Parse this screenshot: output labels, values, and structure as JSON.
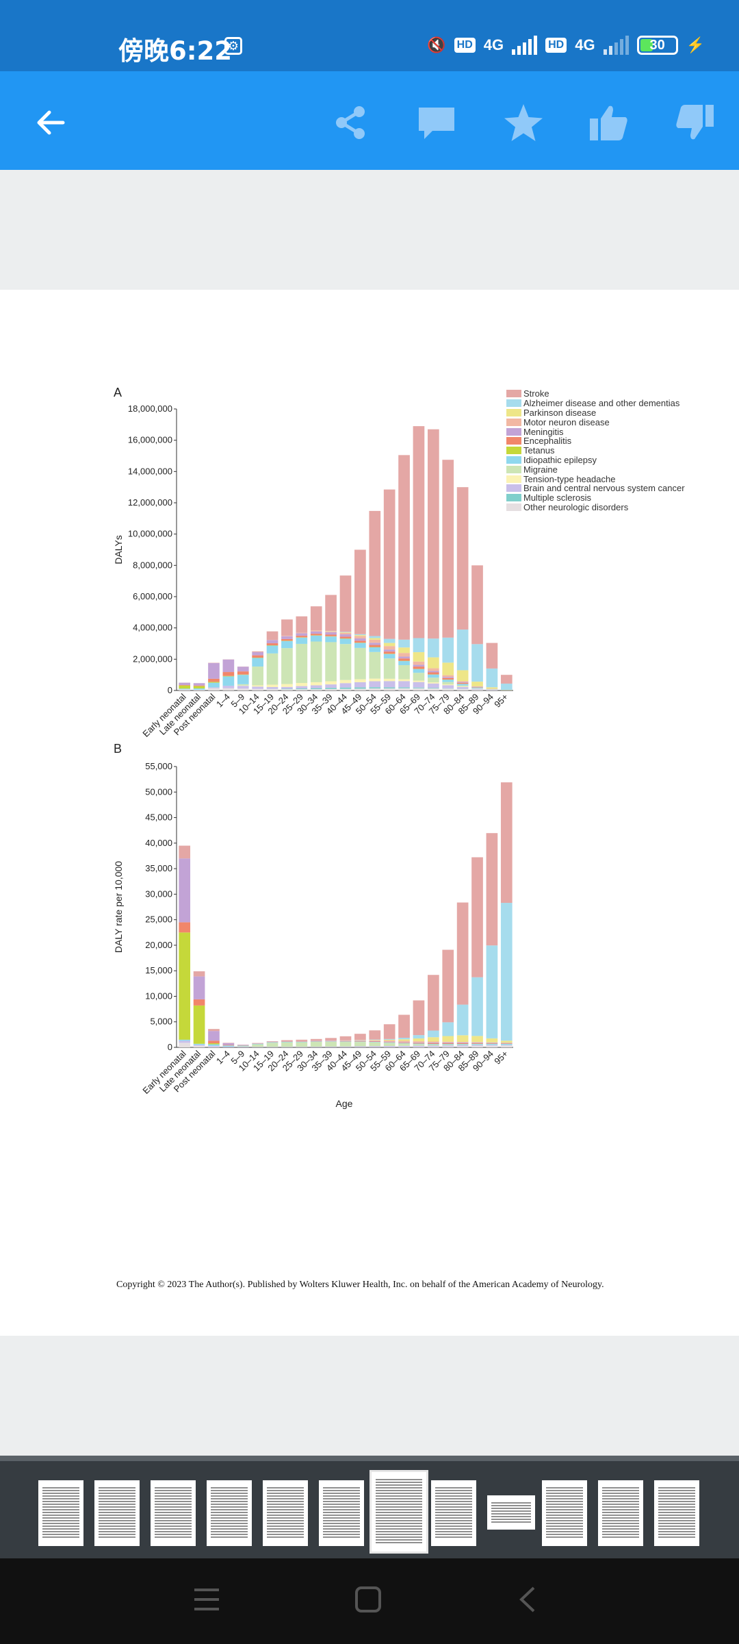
{
  "status_bar": {
    "time": "傍晚6:22",
    "net1": "4G",
    "net2": "4G",
    "hd": "HD",
    "battery": "30"
  },
  "toolbar": {
    "back_icon": "arrow-left-icon",
    "icons": [
      "share-icon",
      "comment-icon",
      "star-icon",
      "thumbs-up-icon",
      "thumbs-down-icon"
    ]
  },
  "figure": {
    "label_a": "A",
    "label_b": "B"
  },
  "legend": [
    {
      "name": "Stroke",
      "color": "#e4a7a5"
    },
    {
      "name": "Alzheimer disease and other dementias",
      "color": "#a6dced"
    },
    {
      "name": "Parkinson disease",
      "color": "#eee688"
    },
    {
      "name": "Motor neuron disease",
      "color": "#f2b8a3"
    },
    {
      "name": "Meningitis",
      "color": "#c2a3d6"
    },
    {
      "name": "Encephalitis",
      "color": "#f1866a"
    },
    {
      "name": "Tetanus",
      "color": "#c5d83a"
    },
    {
      "name": "Idiopathic epilepsy",
      "color": "#8fd8ee"
    },
    {
      "name": "Migraine",
      "color": "#cde5b5"
    },
    {
      "name": "Tension-type headache",
      "color": "#fbf3b5"
    },
    {
      "name": "Brain and central nervous system cancer",
      "color": "#c9bfea"
    },
    {
      "name": "Multiple sclerosis",
      "color": "#80cfcc"
    },
    {
      "name": "Other neurologic disorders",
      "color": "#e5dfe1"
    }
  ],
  "chart_data": [
    {
      "type": "bar",
      "stacked": true,
      "title": "",
      "ylabel": "DALYs",
      "xlabel": "",
      "ylim": [
        0,
        18000000
      ],
      "yticks": [
        "0",
        "2,000,000",
        "4,000,000",
        "6,000,000",
        "8,000,000",
        "10,000,000",
        "12,000,000",
        "14,000,000",
        "16,000,000",
        "18,000,000"
      ],
      "categories": [
        "Early neonatal",
        "Late neonatal",
        "Post neonatal",
        "1–4",
        "5–9",
        "10–14",
        "15–19",
        "20–24",
        "25–29",
        "30–34",
        "35–39",
        "40–44",
        "45–49",
        "50–54",
        "55–59",
        "60–64",
        "65–69",
        "70–74",
        "75–79",
        "80–84",
        "85–89",
        "90–94",
        "95+"
      ],
      "series": [
        {
          "name": "Other neurologic disorders",
          "values": [
            60000,
            40000,
            150000,
            150000,
            120000,
            100000,
            90000,
            80000,
            80000,
            80000,
            90000,
            100000,
            110000,
            130000,
            130000,
            140000,
            140000,
            130000,
            120000,
            100000,
            60000,
            30000,
            10000
          ]
        },
        {
          "name": "Multiple sclerosis",
          "values": [
            0,
            0,
            0,
            0,
            0,
            0,
            10000,
            30000,
            50000,
            70000,
            80000,
            90000,
            90000,
            80000,
            70000,
            60000,
            50000,
            40000,
            20000,
            10000,
            5000,
            0,
            0
          ]
        },
        {
          "name": "Brain and central nervous system cancer",
          "values": [
            10000,
            10000,
            50000,
            150000,
            180000,
            150000,
            120000,
            120000,
            150000,
            180000,
            220000,
            280000,
            330000,
            380000,
            400000,
            400000,
            350000,
            280000,
            200000,
            120000,
            50000,
            20000,
            5000
          ]
        },
        {
          "name": "Tension-type headache",
          "values": [
            0,
            0,
            0,
            0,
            20000,
            80000,
            150000,
            180000,
            200000,
            200000,
            200000,
            200000,
            190000,
            170000,
            150000,
            120000,
            90000,
            70000,
            50000,
            30000,
            10000,
            5000,
            0
          ]
        },
        {
          "name": "Migraine",
          "values": [
            0,
            0,
            0,
            0,
            80000,
            1200000,
            2000000,
            2300000,
            2500000,
            2600000,
            2500000,
            2300000,
            2000000,
            1700000,
            1300000,
            900000,
            500000,
            300000,
            150000,
            60000,
            20000,
            5000,
            0
          ]
        },
        {
          "name": "Idiopathic epilepsy",
          "values": [
            50000,
            80000,
            300000,
            600000,
            600000,
            550000,
            500000,
            450000,
            400000,
            380000,
            360000,
            340000,
            320000,
            300000,
            280000,
            260000,
            240000,
            200000,
            150000,
            100000,
            50000,
            20000,
            5000
          ]
        },
        {
          "name": "Tetanus",
          "values": [
            200000,
            150000,
            50000,
            30000,
            20000,
            20000,
            20000,
            20000,
            20000,
            20000,
            20000,
            20000,
            20000,
            20000,
            20000,
            20000,
            10000,
            10000,
            10000,
            5000,
            0,
            0,
            0
          ]
        },
        {
          "name": "Encephalitis",
          "values": [
            30000,
            40000,
            200000,
            250000,
            200000,
            150000,
            130000,
            110000,
            100000,
            100000,
            100000,
            110000,
            120000,
            130000,
            140000,
            150000,
            150000,
            130000,
            100000,
            70000,
            30000,
            10000,
            0
          ]
        },
        {
          "name": "Meningitis",
          "values": [
            150000,
            150000,
            1000000,
            800000,
            300000,
            200000,
            200000,
            180000,
            160000,
            150000,
            150000,
            150000,
            150000,
            140000,
            130000,
            120000,
            110000,
            90000,
            70000,
            50000,
            20000,
            10000,
            0
          ]
        },
        {
          "name": "Motor neuron disease",
          "values": [
            0,
            0,
            0,
            0,
            0,
            0,
            10000,
            20000,
            30000,
            40000,
            60000,
            100000,
            150000,
            200000,
            220000,
            230000,
            210000,
            170000,
            110000,
            50000,
            20000,
            5000,
            0
          ]
        },
        {
          "name": "Parkinson disease",
          "values": [
            0,
            0,
            0,
            0,
            0,
            0,
            0,
            0,
            0,
            10000,
            20000,
            30000,
            60000,
            100000,
            200000,
            350000,
            600000,
            700000,
            800000,
            700000,
            300000,
            100000,
            20000
          ]
        },
        {
          "name": "Alzheimer disease and other dementias",
          "values": [
            0,
            0,
            0,
            0,
            0,
            0,
            0,
            0,
            0,
            0,
            10000,
            30000,
            60000,
            130000,
            260000,
            500000,
            900000,
            1200000,
            1600000,
            2600000,
            2400000,
            1200000,
            400000
          ]
        },
        {
          "name": "Stroke",
          "values": [
            0,
            0,
            20000,
            10000,
            10000,
            50000,
            550000,
            1050000,
            1050000,
            1550000,
            2300000,
            3600000,
            5400000,
            8000000,
            9550000,
            11800000,
            13550000,
            13380000,
            11370000,
            9105000,
            5035000,
            1635000,
            560000
          ]
        }
      ]
    },
    {
      "type": "bar",
      "stacked": true,
      "title": "",
      "ylabel": "DALY rate per 10,000",
      "xlabel": "Age",
      "ylim": [
        0,
        55000
      ],
      "yticks": [
        "0",
        "5,000",
        "10,000",
        "15,000",
        "20,000",
        "25,000",
        "30,000",
        "35,000",
        "40,000",
        "45,000",
        "50,000",
        "55,000"
      ],
      "categories": [
        "Early neonatal",
        "Late neonatal",
        "Post neonatal",
        "1–4",
        "5–9",
        "10–14",
        "15–19",
        "20–24",
        "25–29",
        "30–34",
        "35–39",
        "40–44",
        "45–49",
        "50–54",
        "55–59",
        "60–64",
        "65–69",
        "70–74",
        "75–79",
        "80–84",
        "85–89",
        "90–94",
        "95+"
      ],
      "series": [
        {
          "name": "Other neurologic disorders",
          "values": [
            900,
            300,
            100,
            50,
            50,
            40,
            40,
            40,
            40,
            40,
            40,
            40,
            50,
            50,
            60,
            70,
            90,
            110,
            150,
            200,
            250,
            300,
            350
          ]
        },
        {
          "name": "Brain and central nervous system cancer",
          "values": [
            400,
            200,
            200,
            100,
            80,
            60,
            60,
            60,
            70,
            80,
            100,
            120,
            150,
            180,
            200,
            220,
            230,
            230,
            220,
            200,
            180,
            150,
            100
          ]
        },
        {
          "name": "Migraine",
          "values": [
            0,
            0,
            0,
            0,
            100,
            500,
            800,
            900,
            900,
            950,
            950,
            900,
            850,
            750,
            600,
            450,
            300,
            200,
            150,
            100,
            80,
            50,
            30
          ]
        },
        {
          "name": "Idiopathic epilepsy",
          "values": [
            200,
            200,
            300,
            200,
            120,
            100,
            100,
            90,
            80,
            80,
            80,
            80,
            80,
            80,
            90,
            100,
            110,
            120,
            140,
            160,
            180,
            200,
            200
          ]
        },
        {
          "name": "Tetanus",
          "values": [
            21000,
            7500,
            200,
            20,
            10,
            10,
            10,
            10,
            10,
            10,
            10,
            10,
            10,
            10,
            10,
            10,
            10,
            10,
            10,
            10,
            10,
            10,
            10
          ]
        },
        {
          "name": "Encephalitis",
          "values": [
            2000,
            1200,
            500,
            100,
            50,
            40,
            40,
            40,
            40,
            40,
            40,
            50,
            60,
            70,
            80,
            100,
            120,
            140,
            150,
            160,
            150,
            120,
            100
          ]
        },
        {
          "name": "Meningitis",
          "values": [
            12500,
            4500,
            1900,
            350,
            80,
            60,
            60,
            60,
            60,
            60,
            60,
            60,
            70,
            80,
            90,
            100,
            110,
            120,
            130,
            140,
            130,
            110,
            100
          ]
        },
        {
          "name": "Motor neuron disease",
          "values": [
            0,
            0,
            0,
            0,
            0,
            0,
            0,
            10,
            20,
            30,
            40,
            70,
            110,
            150,
            200,
            230,
            230,
            210,
            160,
            100,
            50,
            20,
            10
          ]
        },
        {
          "name": "Parkinson disease",
          "values": [
            0,
            0,
            0,
            0,
            0,
            0,
            0,
            0,
            0,
            0,
            10,
            20,
            40,
            80,
            150,
            300,
            550,
            850,
            1100,
            1300,
            1200,
            800,
            400
          ]
        },
        {
          "name": "Alzheimer disease and other dementias",
          "values": [
            0,
            0,
            0,
            0,
            0,
            0,
            0,
            0,
            0,
            0,
            10,
            20,
            40,
            80,
            150,
            300,
            650,
            1300,
            2700,
            6000,
            11500,
            18200,
            27000
          ]
        },
        {
          "name": "Stroke",
          "values": [
            2500,
            1000,
            400,
            80,
            50,
            50,
            100,
            200,
            280,
            350,
            500,
            800,
            1200,
            1800,
            2900,
            4500,
            6800,
            10900,
            14200,
            20000,
            23500,
            22000,
            23600
          ]
        }
      ]
    }
  ],
  "copyright": "Copyright © 2023 The Author(s). Published by Wolters Kluwer Health, Inc. on behalf of the American Academy of Neurology.",
  "thumbnails": {
    "count": 12,
    "selected": 7
  },
  "nav": {
    "icons": [
      "menu-icon",
      "home-icon",
      "back-icon"
    ]
  }
}
